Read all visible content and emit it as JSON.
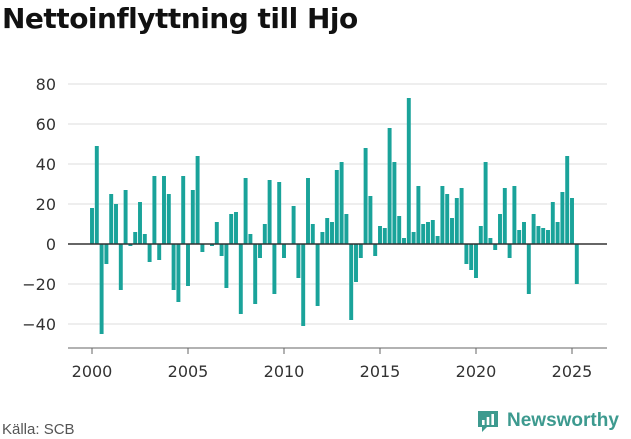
{
  "title": "Nettoinflyttning till Hjo",
  "source": "Källa: SCB",
  "brand": {
    "name": "Newsworthy",
    "icon": "newsworthy-logo-icon"
  },
  "colors": {
    "bar": "#1aa39a",
    "grid": "#dddddd",
    "zero_line": "#333333",
    "axis": "#666666",
    "brand": "#3d9a8f"
  },
  "chart_data": {
    "type": "bar",
    "title": "Nettoinflyttning till Hjo",
    "xlabel": "",
    "ylabel": "",
    "ylim": [
      -50,
      80
    ],
    "yticks": [
      80,
      60,
      40,
      20,
      0,
      -20,
      -40
    ],
    "ytick_labels": [
      "80",
      "60",
      "40",
      "20",
      "0",
      "−20",
      "−40"
    ],
    "xlim": [
      1999.0,
      2026.8
    ],
    "xticks": [
      2000,
      2005,
      2010,
      2015,
      2020,
      2025
    ],
    "xtick_labels": [
      "2000",
      "2005",
      "2010",
      "2015",
      "2020",
      "2025"
    ],
    "grid": true,
    "legend": "none",
    "start": 2000.0,
    "period": "quarter",
    "values": [
      18,
      49,
      -45,
      -10,
      25,
      20,
      -23,
      27,
      -1,
      6,
      21,
      5,
      -9,
      34,
      -8,
      34,
      25,
      -23,
      -29,
      34,
      -21,
      27,
      44,
      -4,
      0,
      -1,
      11,
      -6,
      -22,
      15,
      16,
      -35,
      33,
      5,
      -30,
      -7,
      10,
      32,
      -25,
      31,
      -7,
      0,
      19,
      -17,
      -41,
      33,
      10,
      -31,
      6,
      13,
      11,
      37,
      41,
      15,
      -38,
      -19,
      -7,
      48,
      24,
      -6,
      9,
      8,
      58,
      41,
      14,
      3,
      73,
      6,
      29,
      10,
      11,
      12,
      4,
      29,
      25,
      13,
      23,
      28,
      -10,
      -13,
      -17,
      9,
      41,
      3,
      -3,
      15,
      28,
      -7,
      29,
      7,
      11,
      -25,
      15,
      9,
      8,
      7,
      21,
      11,
      26,
      44,
      23,
      -20
    ]
  }
}
